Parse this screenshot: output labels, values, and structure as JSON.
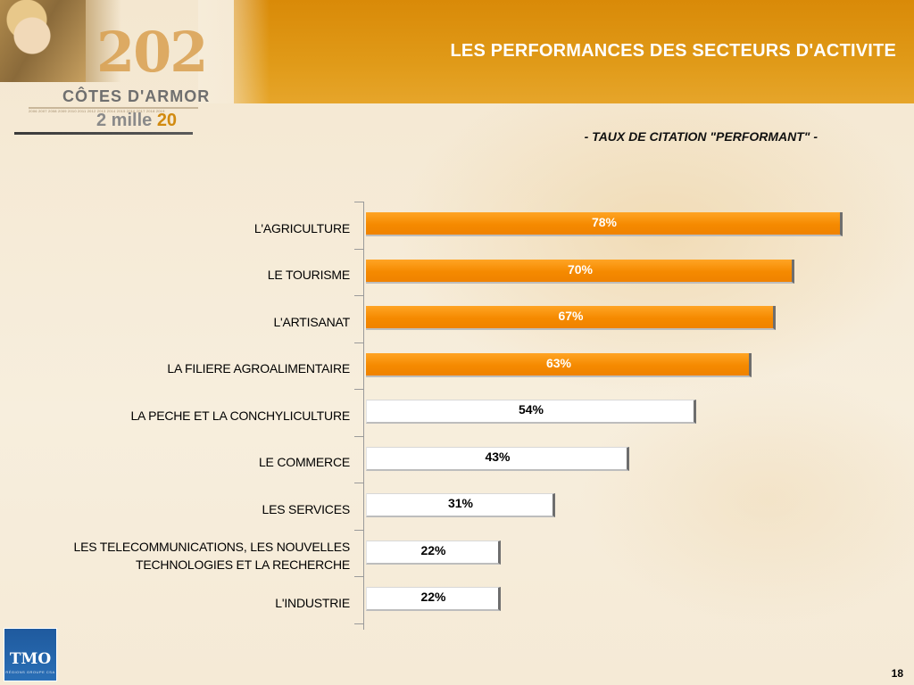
{
  "slide": {
    "title": "LES PERFORMANCES DES SECTEURS D'ACTIVITE",
    "subtitle": "- TAUX DE CITATION \"PERFORMANT\" -",
    "page_number": "18"
  },
  "branding": {
    "year_big": "202",
    "cotes": "CÔTES D'ARMOR",
    "tiny_years": "2006 2007 2008 2009 2010 2011 2012 2013 2014 2015 2016 2017 2018 2019",
    "mille_prefix": "2 mille ",
    "mille_num": "20",
    "tmo_logo": "TMO",
    "tmo_sub": "RÉGIONS GROUPE CSA"
  },
  "colors": {
    "header": "#dd9110",
    "bar_high": "#f58a00",
    "bar_low": "#ffffff",
    "tmo_blue": "#2a6fb6"
  },
  "chart_data": {
    "type": "bar",
    "orientation": "horizontal",
    "value_suffix": "%",
    "xlim": [
      0,
      100
    ],
    "categories": [
      "L'AGRICULTURE",
      "LE TOURISME",
      "L'ARTISANAT",
      "LA FILIERE AGROALIMENTAIRE",
      "LA PECHE ET LA CONCHYLICULTURE",
      "LE COMMERCE",
      "LES SERVICES",
      "LES TELECOMMUNICATIONS, LES NOUVELLES TECHNOLOGIES ET LA RECHERCHE",
      "L'INDUSTRIE"
    ],
    "categories_display": [
      [
        "L'AGRICULTURE"
      ],
      [
        "LE TOURISME"
      ],
      [
        "L'ARTISANAT"
      ],
      [
        "LA FILIERE AGROALIMENTAIRE"
      ],
      [
        "LA PECHE ET LA CONCHYLICULTURE"
      ],
      [
        "LE COMMERCE"
      ],
      [
        "LES SERVICES"
      ],
      [
        "LES TELECOMMUNICATIONS, LES NOUVELLES",
        "TECHNOLOGIES ET LA RECHERCHE"
      ],
      [
        "L'INDUSTRIE"
      ]
    ],
    "values": [
      78,
      70,
      67,
      63,
      54,
      43,
      31,
      22,
      22
    ],
    "highlighted": [
      true,
      true,
      true,
      true,
      false,
      false,
      false,
      false,
      false
    ]
  }
}
